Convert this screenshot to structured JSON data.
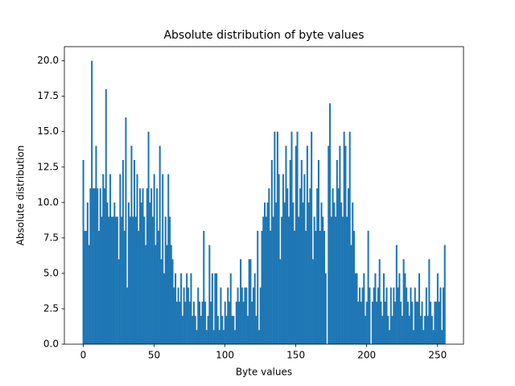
{
  "chart_data": {
    "type": "bar",
    "title": "Absolute distribution of byte values",
    "x_label": "Byte values",
    "y_label": "Absolute distribution",
    "color": "#1f77b4",
    "bar_width": 1,
    "x": [
      0,
      1,
      2,
      3,
      4,
      5,
      6,
      7,
      8,
      9,
      10,
      11,
      12,
      13,
      14,
      15,
      16,
      17,
      18,
      19,
      20,
      21,
      22,
      23,
      24,
      25,
      26,
      27,
      28,
      29,
      30,
      31,
      32,
      33,
      34,
      35,
      36,
      37,
      38,
      39,
      40,
      41,
      42,
      43,
      44,
      45,
      46,
      47,
      48,
      49,
      50,
      51,
      52,
      53,
      54,
      55,
      56,
      57,
      58,
      59,
      60,
      61,
      62,
      63,
      64,
      65,
      66,
      67,
      68,
      69,
      70,
      71,
      72,
      73,
      74,
      75,
      76,
      77,
      78,
      79,
      80,
      81,
      82,
      83,
      84,
      85,
      86,
      87,
      88,
      89,
      90,
      91,
      92,
      93,
      94,
      95,
      96,
      97,
      98,
      99,
      100,
      101,
      102,
      103,
      104,
      105,
      106,
      107,
      108,
      109,
      110,
      111,
      112,
      113,
      114,
      115,
      116,
      117,
      118,
      119,
      120,
      121,
      122,
      123,
      124,
      125,
      126,
      127,
      128,
      129,
      130,
      131,
      132,
      133,
      134,
      135,
      136,
      137,
      138,
      139,
      140,
      141,
      142,
      143,
      144,
      145,
      146,
      147,
      148,
      149,
      150,
      151,
      152,
      153,
      154,
      155,
      156,
      157,
      158,
      159,
      160,
      161,
      162,
      163,
      164,
      165,
      166,
      167,
      168,
      169,
      170,
      171,
      172,
      173,
      174,
      175,
      176,
      177,
      178,
      179,
      180,
      181,
      182,
      183,
      184,
      185,
      186,
      187,
      188,
      189,
      190,
      191,
      192,
      193,
      194,
      195,
      196,
      197,
      198,
      199,
      200,
      201,
      202,
      203,
      204,
      205,
      206,
      207,
      208,
      209,
      210,
      211,
      212,
      213,
      214,
      215,
      216,
      217,
      218,
      219,
      220,
      221,
      222,
      223,
      224,
      225,
      226,
      227,
      228,
      229,
      230,
      231,
      232,
      233,
      234,
      235,
      236,
      237,
      238,
      239,
      240,
      241,
      242,
      243,
      244,
      245,
      246,
      247,
      248,
      249,
      250,
      251,
      252,
      253,
      254,
      255
    ],
    "values": [
      13,
      8,
      8,
      10,
      7,
      11,
      20,
      11,
      11,
      14,
      11,
      8,
      11,
      9,
      12,
      11,
      18,
      10,
      9,
      12,
      9,
      9,
      10,
      9,
      9,
      6,
      12,
      9,
      13,
      8,
      16,
      4,
      10,
      9,
      14,
      9,
      13,
      9,
      12,
      8,
      11,
      10,
      11,
      9,
      7,
      11,
      15,
      10,
      11,
      9,
      12,
      7,
      11,
      8,
      14,
      6,
      12,
      5,
      9,
      7,
      12,
      9,
      7,
      6,
      4,
      5,
      3,
      4,
      3,
      5,
      2,
      4,
      3,
      5,
      4,
      3,
      5,
      2,
      3,
      2,
      1,
      4,
      3,
      2,
      3,
      8,
      3,
      1,
      2,
      7,
      3,
      5,
      1,
      5,
      5,
      2,
      1,
      4,
      2,
      1,
      3,
      2,
      4,
      3,
      5,
      2,
      2,
      1,
      3,
      4,
      3,
      6,
      4,
      3,
      4,
      4,
      2,
      6,
      6,
      3,
      4,
      5,
      2,
      8,
      1,
      4,
      8,
      9,
      10,
      9,
      10,
      11,
      8,
      13,
      9,
      15,
      10,
      15,
      12,
      6,
      9,
      12,
      10,
      14,
      11,
      9,
      13,
      15,
      10,
      8,
      14,
      15,
      9,
      11,
      13,
      10,
      12,
      8,
      14,
      10,
      11,
      15,
      6,
      9,
      8,
      11,
      13,
      8,
      10,
      9,
      8,
      5,
      0,
      14,
      17,
      9,
      11,
      10,
      9,
      13,
      11,
      14,
      10,
      9,
      15,
      14,
      9,
      11,
      15,
      7,
      10,
      8,
      5,
      5,
      3,
      4,
      3,
      4,
      5,
      2,
      3,
      8,
      4,
      0,
      3,
      4,
      5,
      3,
      4,
      6,
      3,
      2,
      5,
      3,
      4,
      2,
      1,
      4,
      2,
      4,
      3,
      7,
      4,
      5,
      3,
      2,
      6,
      5,
      4,
      3,
      2,
      4,
      3,
      1,
      4,
      3,
      3,
      5,
      2,
      3,
      1,
      2,
      4,
      2,
      6,
      3,
      2,
      1,
      3,
      3,
      5,
      3,
      4,
      1,
      4,
      7
    ],
    "xlim": [
      -13.3,
      268.3
    ],
    "xticks": [
      0,
      50,
      100,
      150,
      200,
      250
    ],
    "ylim": [
      0,
      21
    ],
    "yticks": [
      {
        "value": 0,
        "label": "0.0"
      },
      {
        "value": 2.5,
        "label": "2.5"
      },
      {
        "value": 5,
        "label": "5.0"
      },
      {
        "value": 7.5,
        "label": "7.5"
      },
      {
        "value": 10,
        "label": "10.0"
      },
      {
        "value": 12.5,
        "label": "12.5"
      },
      {
        "value": 15,
        "label": "15.0"
      },
      {
        "value": 17.5,
        "label": "17.5"
      },
      {
        "value": 20,
        "label": "20.0"
      }
    ],
    "grid": false
  }
}
